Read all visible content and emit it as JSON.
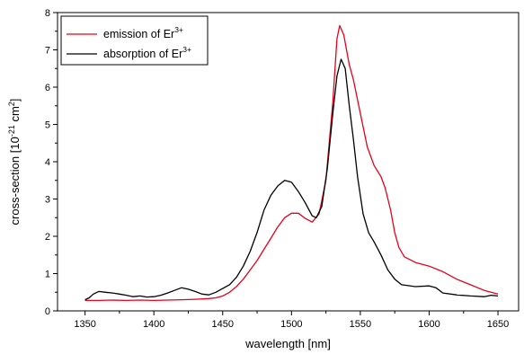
{
  "chart_data": {
    "type": "line",
    "xlabel": "wavelength [nm]",
    "ylabel_parts": {
      "pre": "cross-section [10",
      "exp": "-21",
      "mid": " cm",
      "exp2": "2",
      "post": "]"
    },
    "xlim": [
      1330,
      1665
    ],
    "ylim": [
      0,
      8
    ],
    "xticks": [
      1350,
      1400,
      1450,
      1500,
      1550,
      1600,
      1650
    ],
    "yticks": [
      0,
      1,
      2,
      3,
      4,
      5,
      6,
      7,
      8
    ],
    "legend_position": "top-left",
    "series": [
      {
        "label_base": "emission of Er",
        "label_sup": "3+",
        "color": "#e8001c",
        "points": [
          [
            1350,
            0.28
          ],
          [
            1360,
            0.28
          ],
          [
            1370,
            0.29
          ],
          [
            1380,
            0.28
          ],
          [
            1390,
            0.29
          ],
          [
            1400,
            0.28
          ],
          [
            1410,
            0.29
          ],
          [
            1420,
            0.3
          ],
          [
            1430,
            0.31
          ],
          [
            1440,
            0.33
          ],
          [
            1445,
            0.35
          ],
          [
            1450,
            0.4
          ],
          [
            1455,
            0.5
          ],
          [
            1460,
            0.65
          ],
          [
            1465,
            0.85
          ],
          [
            1470,
            1.1
          ],
          [
            1475,
            1.35
          ],
          [
            1480,
            1.65
          ],
          [
            1485,
            1.95
          ],
          [
            1490,
            2.25
          ],
          [
            1495,
            2.5
          ],
          [
            1500,
            2.62
          ],
          [
            1505,
            2.62
          ],
          [
            1510,
            2.48
          ],
          [
            1515,
            2.38
          ],
          [
            1520,
            2.6
          ],
          [
            1525,
            3.5
          ],
          [
            1530,
            5.6
          ],
          [
            1533,
            7.3
          ],
          [
            1535,
            7.65
          ],
          [
            1538,
            7.4
          ],
          [
            1542,
            6.6
          ],
          [
            1545,
            6.2
          ],
          [
            1550,
            5.3
          ],
          [
            1555,
            4.4
          ],
          [
            1560,
            3.9
          ],
          [
            1565,
            3.6
          ],
          [
            1568,
            3.3
          ],
          [
            1572,
            2.7
          ],
          [
            1575,
            2.1
          ],
          [
            1578,
            1.7
          ],
          [
            1582,
            1.45
          ],
          [
            1590,
            1.3
          ],
          [
            1600,
            1.2
          ],
          [
            1610,
            1.05
          ],
          [
            1620,
            0.85
          ],
          [
            1630,
            0.7
          ],
          [
            1640,
            0.55
          ],
          [
            1650,
            0.45
          ]
        ]
      },
      {
        "label_base": "absorption of Er",
        "label_sup": "3+",
        "color": "#000000",
        "points": [
          [
            1350,
            0.3
          ],
          [
            1353,
            0.35
          ],
          [
            1356,
            0.45
          ],
          [
            1360,
            0.52
          ],
          [
            1365,
            0.5
          ],
          [
            1370,
            0.48
          ],
          [
            1375,
            0.45
          ],
          [
            1380,
            0.42
          ],
          [
            1385,
            0.38
          ],
          [
            1390,
            0.4
          ],
          [
            1395,
            0.37
          ],
          [
            1400,
            0.38
          ],
          [
            1405,
            0.42
          ],
          [
            1410,
            0.48
          ],
          [
            1415,
            0.55
          ],
          [
            1420,
            0.62
          ],
          [
            1425,
            0.58
          ],
          [
            1430,
            0.52
          ],
          [
            1435,
            0.45
          ],
          [
            1440,
            0.43
          ],
          [
            1445,
            0.5
          ],
          [
            1450,
            0.6
          ],
          [
            1455,
            0.7
          ],
          [
            1460,
            0.9
          ],
          [
            1465,
            1.2
          ],
          [
            1470,
            1.6
          ],
          [
            1475,
            2.1
          ],
          [
            1480,
            2.7
          ],
          [
            1485,
            3.1
          ],
          [
            1490,
            3.35
          ],
          [
            1495,
            3.5
          ],
          [
            1500,
            3.45
          ],
          [
            1505,
            3.2
          ],
          [
            1510,
            2.9
          ],
          [
            1515,
            2.55
          ],
          [
            1518,
            2.5
          ],
          [
            1522,
            2.8
          ],
          [
            1526,
            3.8
          ],
          [
            1530,
            5.3
          ],
          [
            1533,
            6.3
          ],
          [
            1536,
            6.75
          ],
          [
            1539,
            6.5
          ],
          [
            1542,
            5.5
          ],
          [
            1545,
            4.6
          ],
          [
            1548,
            3.6
          ],
          [
            1552,
            2.6
          ],
          [
            1556,
            2.1
          ],
          [
            1560,
            1.85
          ],
          [
            1565,
            1.5
          ],
          [
            1570,
            1.1
          ],
          [
            1575,
            0.85
          ],
          [
            1580,
            0.7
          ],
          [
            1590,
            0.65
          ],
          [
            1600,
            0.67
          ],
          [
            1605,
            0.62
          ],
          [
            1610,
            0.48
          ],
          [
            1620,
            0.43
          ],
          [
            1630,
            0.4
          ],
          [
            1640,
            0.38
          ],
          [
            1645,
            0.42
          ],
          [
            1650,
            0.4
          ]
        ]
      }
    ]
  }
}
